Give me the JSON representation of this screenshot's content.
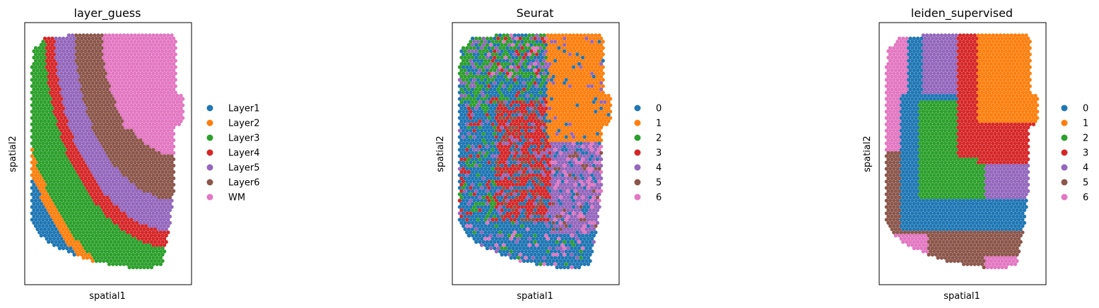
{
  "palette": [
    "#1f77b4",
    "#ff7f0e",
    "#2ca02c",
    "#d62728",
    "#9467bd",
    "#8c564b",
    "#e377c2"
  ],
  "chart_data": [
    {
      "type": "scatter",
      "title": "layer_guess",
      "xlabel": "spatial1",
      "ylabel": "spatial2",
      "grid": false,
      "legend_position": "right",
      "legend": [
        "Layer1",
        "Layer2",
        "Layer3",
        "Layer4",
        "Layer5",
        "Layer6",
        "WM"
      ]
    },
    {
      "type": "scatter",
      "title": "Seurat",
      "xlabel": "spatial1",
      "ylabel": "spatial2",
      "grid": false,
      "legend_position": "right",
      "legend": [
        "0",
        "1",
        "2",
        "3",
        "4",
        "5",
        "6"
      ]
    },
    {
      "type": "scatter",
      "title": "leiden_supervised",
      "xlabel": "spatial1",
      "ylabel": "spatial2",
      "grid": false,
      "legend_position": "right",
      "legend": [
        "0",
        "1",
        "2",
        "3",
        "4",
        "5",
        "6"
      ]
    }
  ]
}
